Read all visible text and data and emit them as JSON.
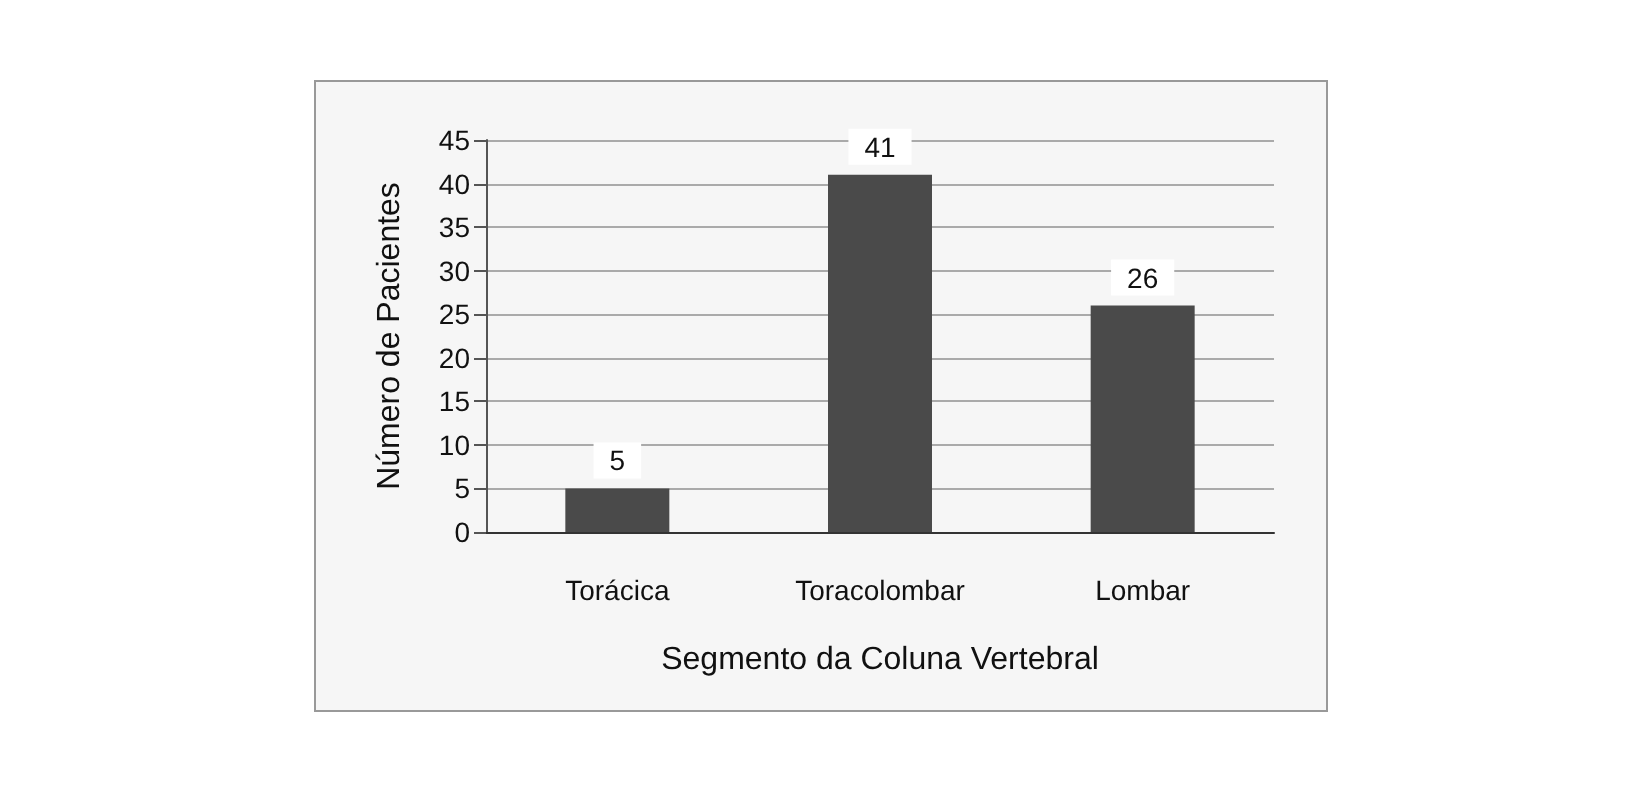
{
  "chart_data": {
    "type": "bar",
    "xlabel": "Segmento da Coluna Vertebral",
    "ylabel": "Número de Pacientes",
    "categories": [
      "Torácica",
      "Toracolombar",
      "Lombar"
    ],
    "values": [
      5,
      41,
      26
    ],
    "color": "#4a4a4a",
    "ylim": [
      0,
      45
    ],
    "yticks": [
      0,
      5,
      10,
      15,
      20,
      25,
      30,
      35,
      40,
      45
    ],
    "grid": "y",
    "data_labels": true
  }
}
